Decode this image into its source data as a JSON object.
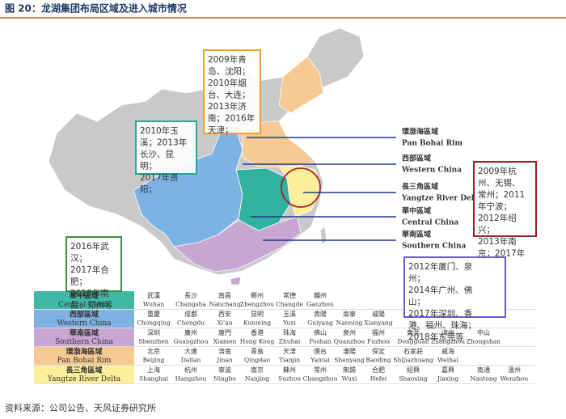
{
  "header": {
    "title": "图 20：龙湖集团布局区域及进入城市情况"
  },
  "map_labels": [
    {
      "cn": "環渤海區域",
      "en": "Pan Bohai Rim"
    },
    {
      "cn": "西部區域",
      "en": "Western China"
    },
    {
      "cn": "長三角區域",
      "en": "Yangtze River Delta"
    },
    {
      "cn": "華中區域",
      "en": "Central China"
    },
    {
      "cn": "華南區域",
      "en": "Southern China"
    }
  ],
  "annotations": [
    {
      "color": "#f0a030",
      "lines": [
        "2009年青",
        "岛、沈阳；",
        "2010年烟",
        "台、大连；",
        "2013年济",
        "南；2016年",
        "天津；"
      ]
    },
    {
      "color": "#2aa59a",
      "lines": [
        "2010年玉",
        "溪；2013年",
        "长沙、昆",
        "明；",
        "2017年贵",
        "阳；"
      ]
    },
    {
      "color": "#a01c24",
      "lines": [
        "2009年杭",
        "州、无锡、",
        "常州；2011",
        "年宁波；",
        "2012年绍",
        "兴；",
        "2013年南",
        "京；2017年"
      ]
    },
    {
      "color": "#3d8c40",
      "lines": [
        "2016年武",
        "汉；",
        "2017年合",
        "肥；",
        "2018年南",
        "昌、郑州等"
      ]
    },
    {
      "color": "#6a5acd",
      "lines": [
        "2012年厦门、泉",
        "州；",
        "2014年广州、佛",
        "山；",
        "2017年深圳、香",
        "港、福州、珠海；",
        "2018年东莞等"
      ]
    }
  ],
  "legend": {
    "rows": [
      {
        "cn": "華中區域",
        "en": "Central China",
        "color": "#3fb8a6",
        "cities": [
          {
            "cn": "武漢",
            "en": "Wuhan"
          },
          {
            "cn": "長沙",
            "en": "Changsha"
          },
          {
            "cn": "南昌",
            "en": "Nanchang"
          },
          {
            "cn": "鄭州",
            "en": "Zhengzhou"
          },
          {
            "cn": "常德",
            "en": "Changde"
          },
          {
            "cn": "贛州",
            "en": "Ganzhou"
          }
        ]
      },
      {
        "cn": "西部區域",
        "en": "Western China",
        "color": "#7db3e2",
        "cities": [
          {
            "cn": "重慶",
            "en": "Chongqing"
          },
          {
            "cn": "成都",
            "en": "Chengdu"
          },
          {
            "cn": "西安",
            "en": "Xi'an"
          },
          {
            "cn": "昆明",
            "en": "Kunming"
          },
          {
            "cn": "玉溪",
            "en": "Yuxi"
          },
          {
            "cn": "貴陽",
            "en": "Guiyang"
          },
          {
            "cn": "南寧",
            "en": "Nanning"
          },
          {
            "cn": "咸陽",
            "en": "Xianyang"
          }
        ]
      },
      {
        "cn": "華南區域",
        "en": "Southern China",
        "color": "#c9a5d4",
        "cities": [
          {
            "cn": "深圳",
            "en": "Shenzhen"
          },
          {
            "cn": "廣州",
            "en": "Guangzhou"
          },
          {
            "cn": "廈門",
            "en": "Xiamen"
          },
          {
            "cn": "香港",
            "en": "Hong Kong"
          },
          {
            "cn": "珠海",
            "en": "Zhuhai"
          },
          {
            "cn": "佛山",
            "en": "Foshan"
          },
          {
            "cn": "泉州",
            "en": "Quanzhou"
          },
          {
            "cn": "福州",
            "en": "Fuzhou"
          },
          {
            "cn": "東莞",
            "en": "Dongguan"
          },
          {
            "cn": "漳州",
            "en": "Zhangzhou"
          },
          {
            "cn": "中山",
            "en": "Zhongshan"
          }
        ]
      },
      {
        "cn": "環渤海區域",
        "en": "Pan Bohai Rim",
        "color": "#f6ca92",
        "cities": [
          {
            "cn": "北京",
            "en": "Beijing"
          },
          {
            "cn": "大連",
            "en": "Dalian"
          },
          {
            "cn": "濟南",
            "en": "Jinan"
          },
          {
            "cn": "青島",
            "en": "Qingdao"
          },
          {
            "cn": "天津",
            "en": "Tianjin"
          },
          {
            "cn": "煙台",
            "en": "Yantai"
          },
          {
            "cn": "瀋陽",
            "en": "Shenyang"
          },
          {
            "cn": "保定",
            "en": "Baoding"
          },
          {
            "cn": "石家莊",
            "en": "Shijiazhuang"
          },
          {
            "cn": "威海",
            "en": "Weihai"
          }
        ]
      },
      {
        "cn": "長三角區域",
        "en": "Yangtze River Delta",
        "color": "#fbef9c",
        "cities": [
          {
            "cn": "上海",
            "en": "Shanghai"
          },
          {
            "cn": "杭州",
            "en": "Hangzhou"
          },
          {
            "cn": "寧波",
            "en": "Ningbo"
          },
          {
            "cn": "南京",
            "en": "Nanjing"
          },
          {
            "cn": "蘇州",
            "en": "Suzhou"
          },
          {
            "cn": "常州",
            "en": "Changzhou"
          },
          {
            "cn": "無錫",
            "en": "Wuxi"
          },
          {
            "cn": "合肥",
            "en": "Hefei"
          },
          {
            "cn": "紹興",
            "en": "Shaoxing"
          },
          {
            "cn": "嘉興",
            "en": "Jiaxing"
          },
          {
            "cn": "南通",
            "en": "Nantong"
          },
          {
            "cn": "溫州",
            "en": "Wenzhou"
          }
        ]
      }
    ]
  },
  "source": "资料来源：公司公告、天风证券研究所"
}
